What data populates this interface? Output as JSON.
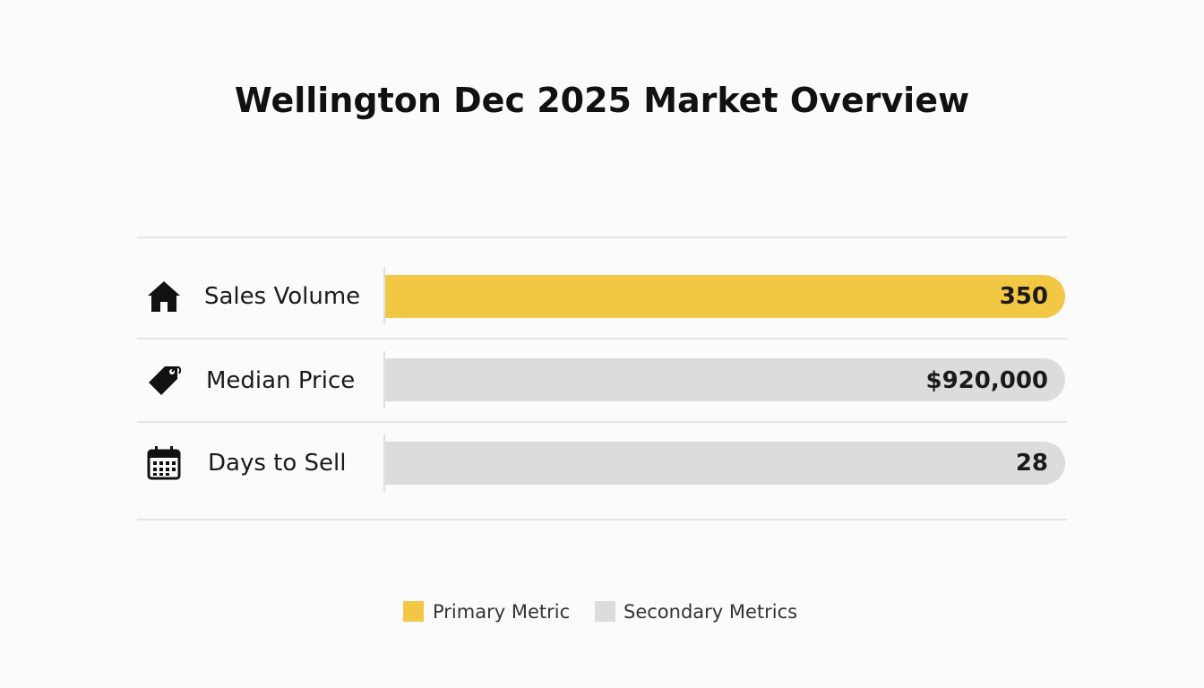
{
  "title": "Wellington Dec 2025 Market Overview",
  "rows": [
    {
      "label": "Sales Volume",
      "value": "350",
      "color": "#f2c744"
    },
    {
      "label": "Median Price",
      "value": "$920,000",
      "color": "#dcdcdc"
    },
    {
      "label": "Days to Sell",
      "value": "28",
      "color": "#dcdcdc"
    }
  ],
  "legend": [
    {
      "label": "Primary Metric",
      "color": "#f2c744"
    },
    {
      "label": "Secondary Metrics",
      "color": "#dcdcdc"
    }
  ]
}
